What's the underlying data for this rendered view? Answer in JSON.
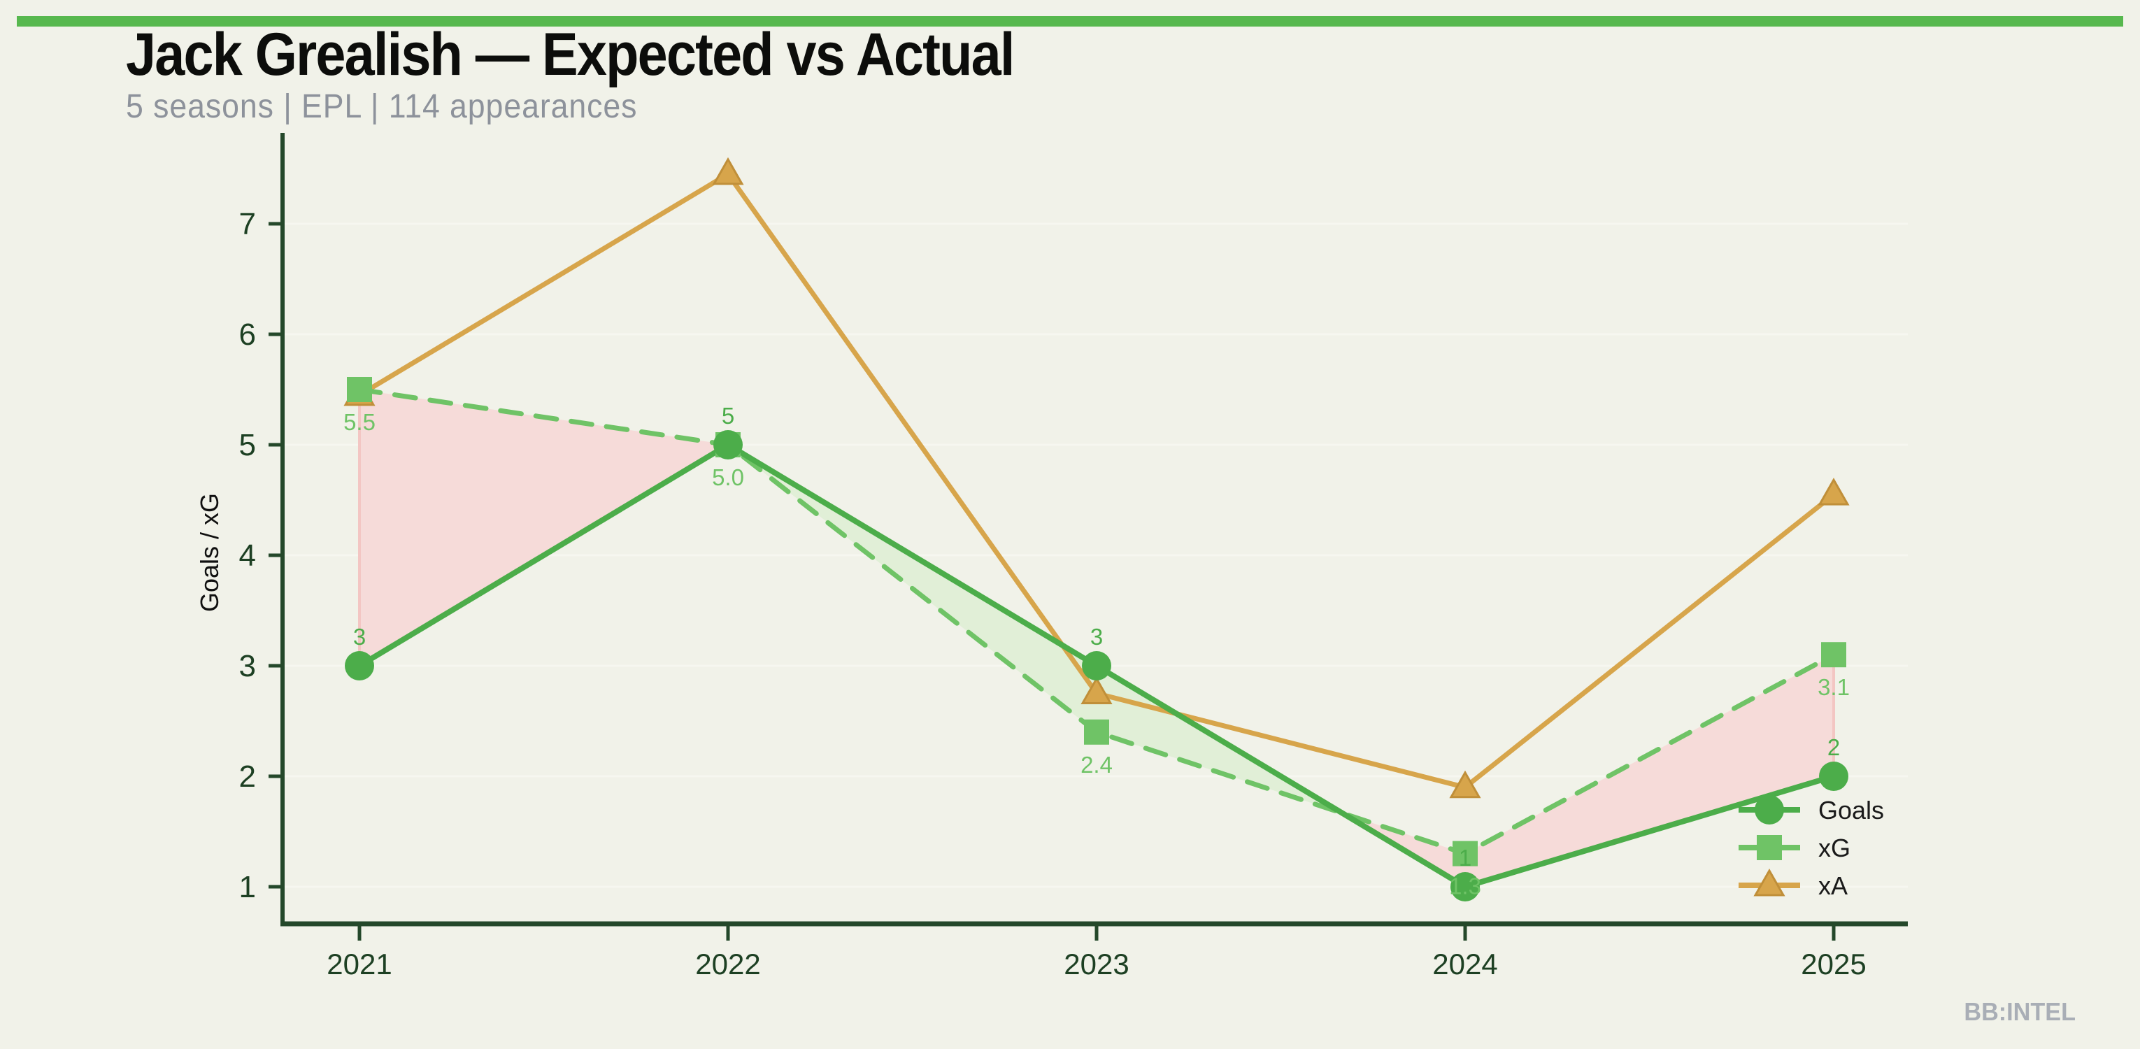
{
  "page": {
    "title": "Jack Grealish — Expected vs Actual",
    "subtitle": "5 seasons | EPL | 114 appearances",
    "watermark": "BB:INTEL",
    "background_color": "#f1f2e9",
    "accent_bar_color": "#57b84e"
  },
  "chart_data": {
    "type": "line",
    "title": "Jack Grealish — Expected vs Actual",
    "subtitle": "5 seasons | EPL | 114 appearances",
    "categories": [
      "2021",
      "2022",
      "2023",
      "2024",
      "2025"
    ],
    "xlabel": "",
    "ylabel": "Goals / xG",
    "ylim": [
      0.7,
      7.8
    ],
    "yticks": [
      1,
      2,
      3,
      4,
      5,
      6,
      7
    ],
    "grid": "faint horizontal lines at integer values",
    "legend_position": "inside lower right",
    "series": [
      {
        "name": "Goals",
        "values": [
          3,
          5,
          3,
          1,
          2
        ],
        "labels": [
          "3",
          "5",
          "3",
          "1",
          "2"
        ],
        "label_position": "above",
        "color": "#4cad4a",
        "style": "solid",
        "marker": "circle"
      },
      {
        "name": "xG",
        "values": [
          5.5,
          5.0,
          2.4,
          1.3,
          3.1
        ],
        "labels": [
          "5.5",
          "5.0",
          "2.4",
          "1.3",
          "3.1"
        ],
        "label_position": "below",
        "color": "#6fc366",
        "style": "dashed",
        "marker": "square"
      },
      {
        "name": "xA",
        "values": [
          5.45,
          7.45,
          2.75,
          1.9,
          4.55
        ],
        "labels": null,
        "color": "#d7a54b",
        "style": "solid",
        "marker": "triangle"
      }
    ],
    "bands": {
      "between": [
        "xG",
        "Goals"
      ],
      "xg_above_goals_color": "#f6dbd9",
      "goals_above_xg_color": "#e1efd7",
      "end_edge_color": "#f3c6c3"
    },
    "palette": {
      "axis": "#24482a",
      "tick_text": "#1d4023",
      "gridline": "#f6f7f0",
      "legend_text": "#1a1a1a"
    }
  }
}
